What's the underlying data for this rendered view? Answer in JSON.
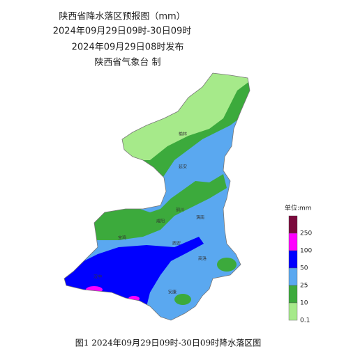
{
  "header": {
    "title": "陕西省降水落区预报图（mm）",
    "period": "2024年09月29日09时-30日09时",
    "issued": "2024年09月29日08时发布",
    "issuer": "陕西省气象台 制"
  },
  "map": {
    "cities": [
      "榆林",
      "延安",
      "铜川",
      "咸阳",
      "渭南",
      "宝鸡",
      "西安",
      "汉中",
      "商洛",
      "安康"
    ]
  },
  "legend": {
    "title": "单位:mm",
    "items": [
      {
        "label": "250",
        "color": "#7b0a3c"
      },
      {
        "label": "100",
        "color": "#ff00ff"
      },
      {
        "label": "50",
        "color": "#0000ff"
      },
      {
        "label": "25",
        "color": "#5aa8f0"
      },
      {
        "label": "10",
        "color": "#3caa3c"
      },
      {
        "label": "0.1",
        "color": "#a6ea8a"
      }
    ]
  },
  "caption": "图1 2024年09月29日09时-30日09时降水落区图"
}
